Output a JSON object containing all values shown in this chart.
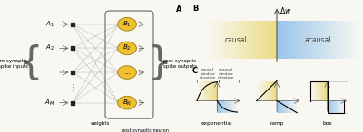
{
  "bg_color": "#f8f7f2",
  "causal_color": "#e8d870",
  "acausal_color": "#88bce8",
  "causal_label": "causal",
  "acausal_label": "acausal",
  "dw_label": "Δw",
  "exp_label": "exponential",
  "ramp_label": "ramp",
  "box_label": "box",
  "node_color": "#f0c030",
  "node_edge_color": "#a08820",
  "line_color": "#666666",
  "text_color": "#333333"
}
